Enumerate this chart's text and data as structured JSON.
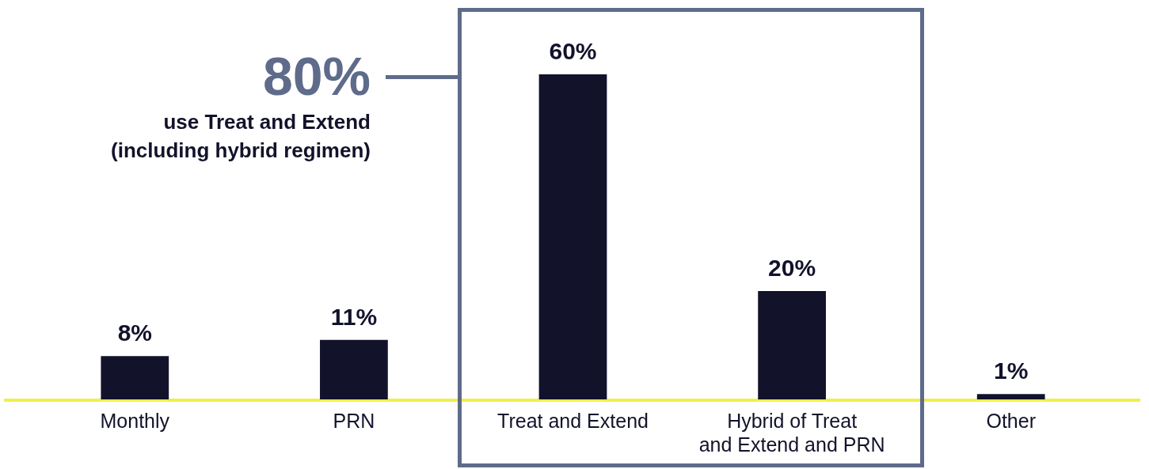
{
  "chart_data": {
    "type": "bar",
    "categories": [
      "Monthly",
      "PRN",
      "Treat and Extend",
      "Hybrid of Treat and Extend and PRN",
      "Other"
    ],
    "values": [
      8,
      11,
      60,
      20,
      1
    ],
    "value_labels": [
      "8%",
      "11%",
      "60%",
      "20%",
      "1%"
    ],
    "color": "#12122b",
    "annotations": [
      "80%",
      "use Treat and Extend (including hybrid regimen)"
    ]
  }
}
